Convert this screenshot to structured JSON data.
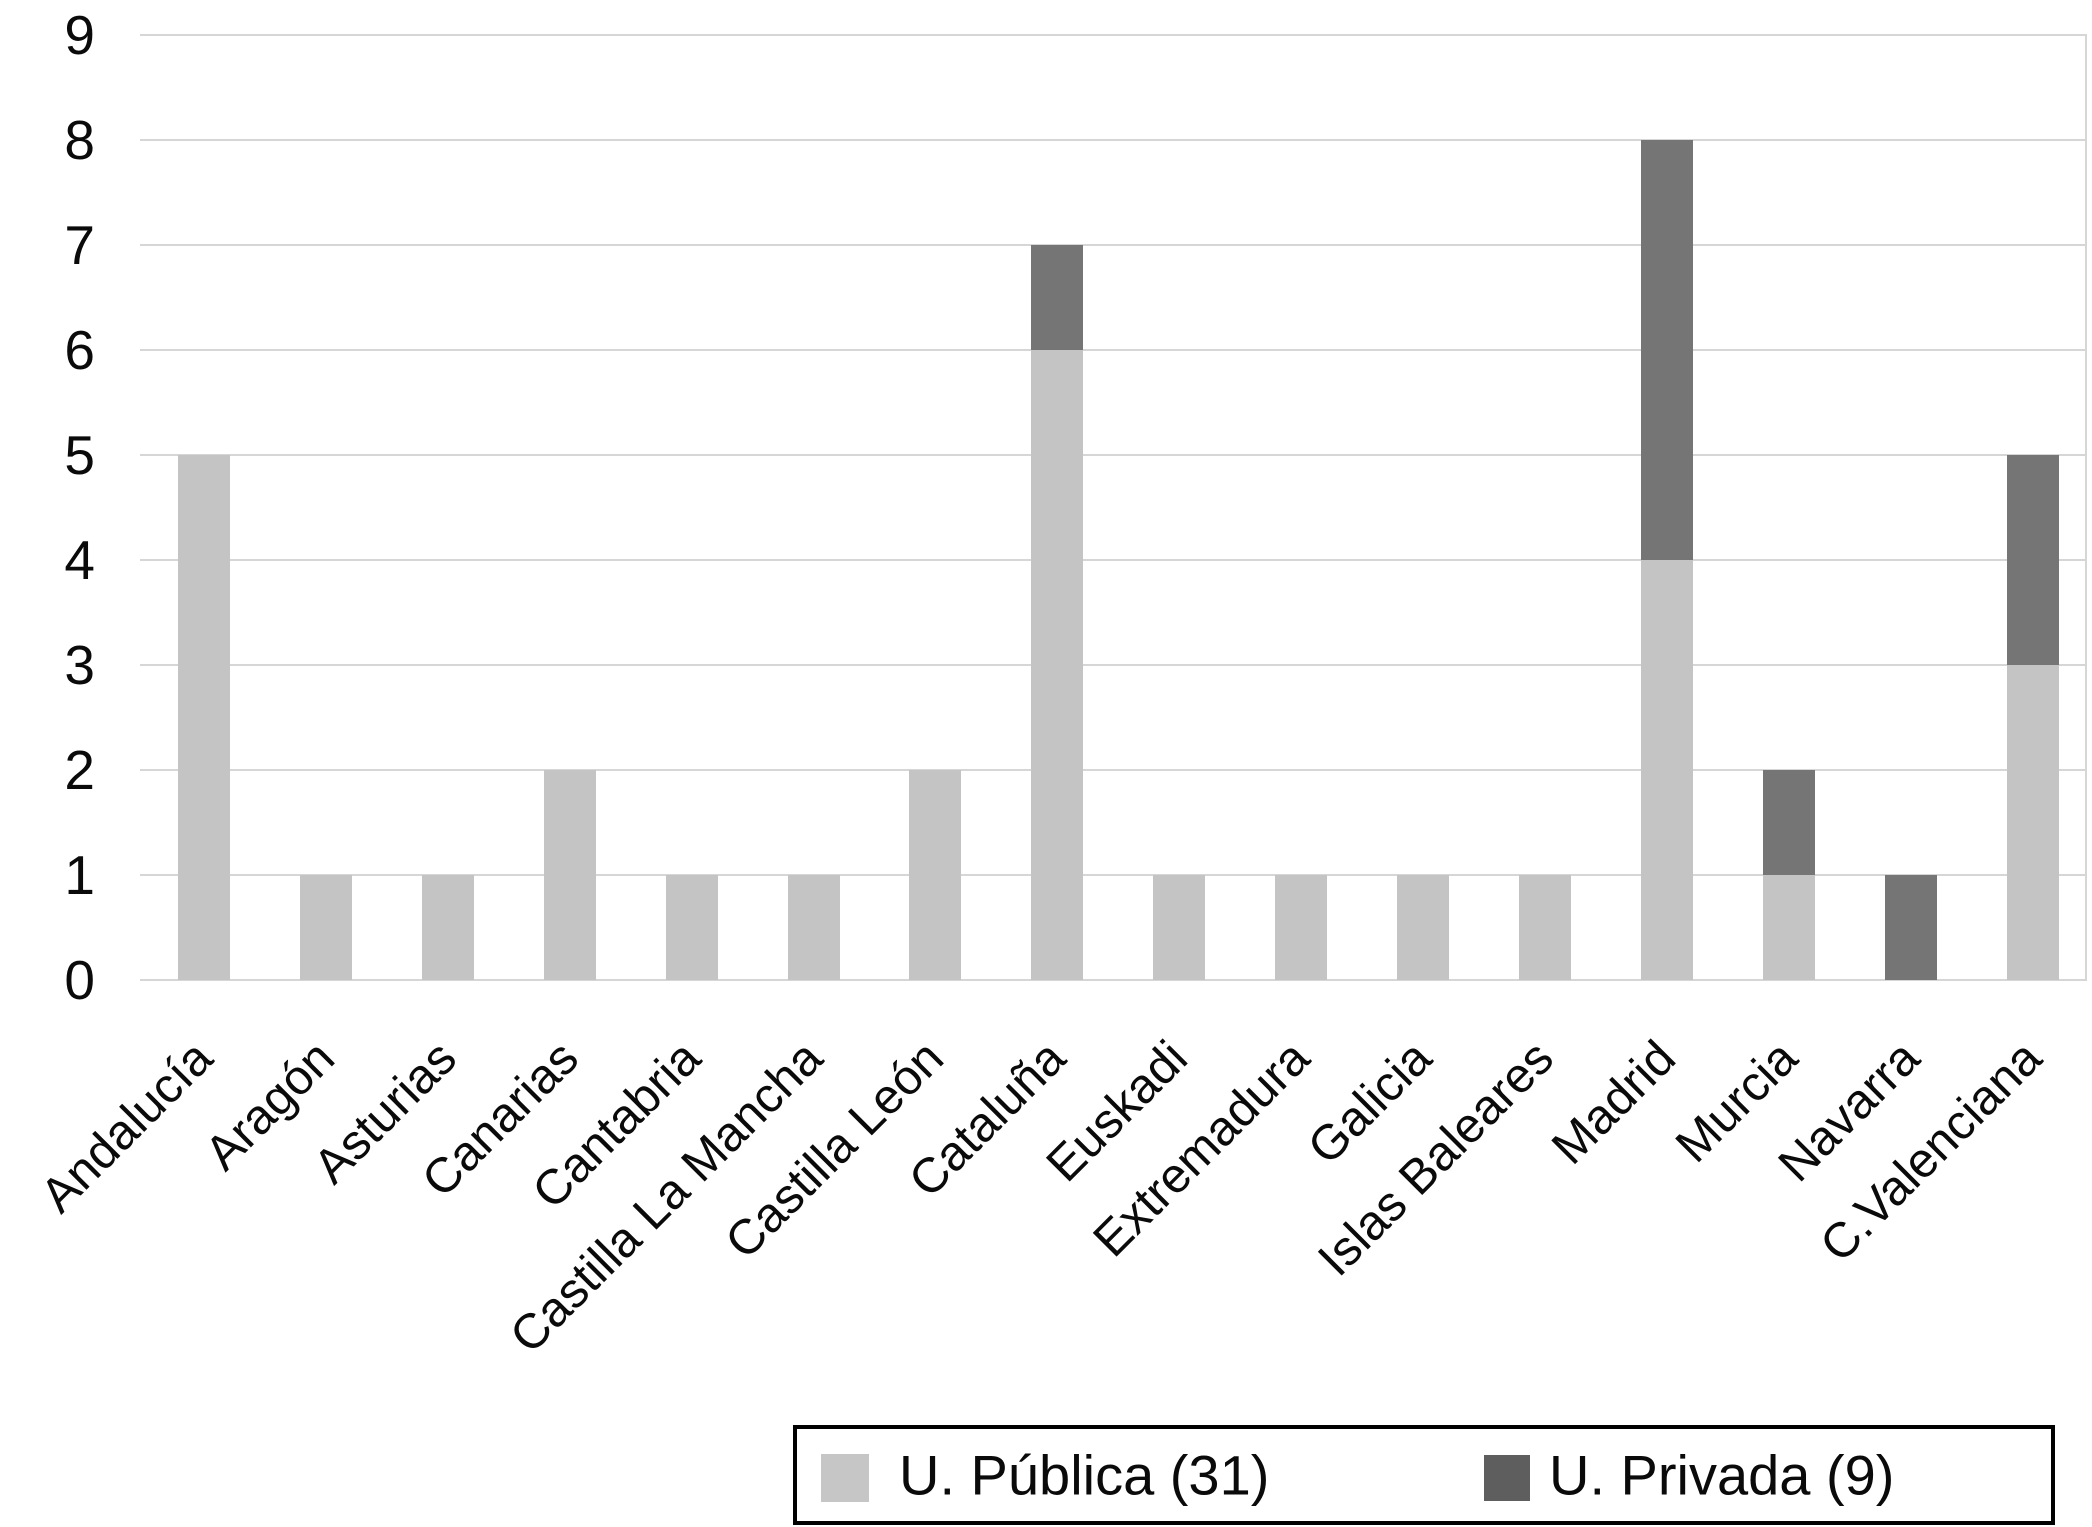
{
  "chart_data": {
    "type": "bar",
    "stacked": true,
    "title": "",
    "xlabel": "",
    "ylabel": "",
    "categories": [
      "Andalucía",
      "Aragón",
      "Asturias",
      "Canarias",
      "Cantabria",
      "Castilla La Mancha",
      "Castilla León",
      "Cataluña",
      "Euskadi",
      "Extremadura",
      "Galicia",
      "Islas Baleares",
      "Madrid",
      "Murcia",
      "Navarra",
      "C.Valenciana"
    ],
    "series": [
      {
        "name": "U. Pública (31)",
        "color": "#c4c4c4",
        "values": [
          5,
          1,
          1,
          2,
          1,
          1,
          2,
          6,
          1,
          1,
          1,
          1,
          4,
          1,
          0,
          3
        ]
      },
      {
        "name": "U. Privada (9)",
        "color": "#757575",
        "values": [
          0,
          0,
          0,
          0,
          0,
          0,
          0,
          1,
          0,
          0,
          0,
          0,
          4,
          1,
          1,
          2
        ]
      }
    ],
    "y_axis": {
      "min": 0,
      "max": 9,
      "step": 1,
      "tick_labels": [
        "0",
        "1",
        "2",
        "3",
        "4",
        "5",
        "6",
        "7",
        "8",
        "9"
      ]
    },
    "grid": "horizontal",
    "legend": {
      "position": "bottom",
      "bordered": true,
      "public_swatch_color": "#c6c6c6",
      "private_swatch_color": "#5e5e5e"
    }
  }
}
